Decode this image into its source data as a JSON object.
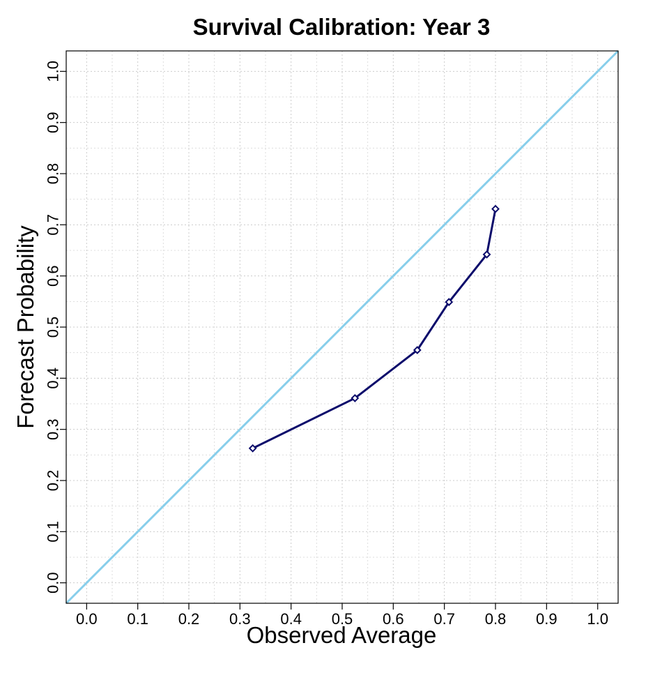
{
  "chart_data": {
    "type": "line",
    "title": "Survival Calibration: Year 3",
    "xlabel": "Observed Average",
    "ylabel": "Forecast Probability",
    "xlim": [
      -0.04,
      1.04
    ],
    "ylim": [
      -0.04,
      1.04
    ],
    "x_ticks": [
      "0.0",
      "0.1",
      "0.2",
      "0.3",
      "0.4",
      "0.5",
      "0.6",
      "0.7",
      "0.8",
      "0.9",
      "1.0"
    ],
    "y_ticks": [
      "0.0",
      "0.1",
      "0.2",
      "0.3",
      "0.4",
      "0.5",
      "0.6",
      "0.7",
      "0.8",
      "0.9",
      "1.0"
    ],
    "grid": true,
    "reference_line": {
      "x": [
        -0.04,
        1.04
      ],
      "y": [
        -0.04,
        1.04
      ],
      "color": "#87ceeb"
    },
    "series": [
      {
        "color": "#0b0b6b",
        "marker": "diamond",
        "points": [
          {
            "x": 0.325,
            "y": 0.263
          },
          {
            "x": 0.525,
            "y": 0.361
          },
          {
            "x": 0.647,
            "y": 0.455
          },
          {
            "x": 0.709,
            "y": 0.549
          },
          {
            "x": 0.783,
            "y": 0.642
          },
          {
            "x": 0.8,
            "y": 0.731
          }
        ]
      }
    ]
  }
}
